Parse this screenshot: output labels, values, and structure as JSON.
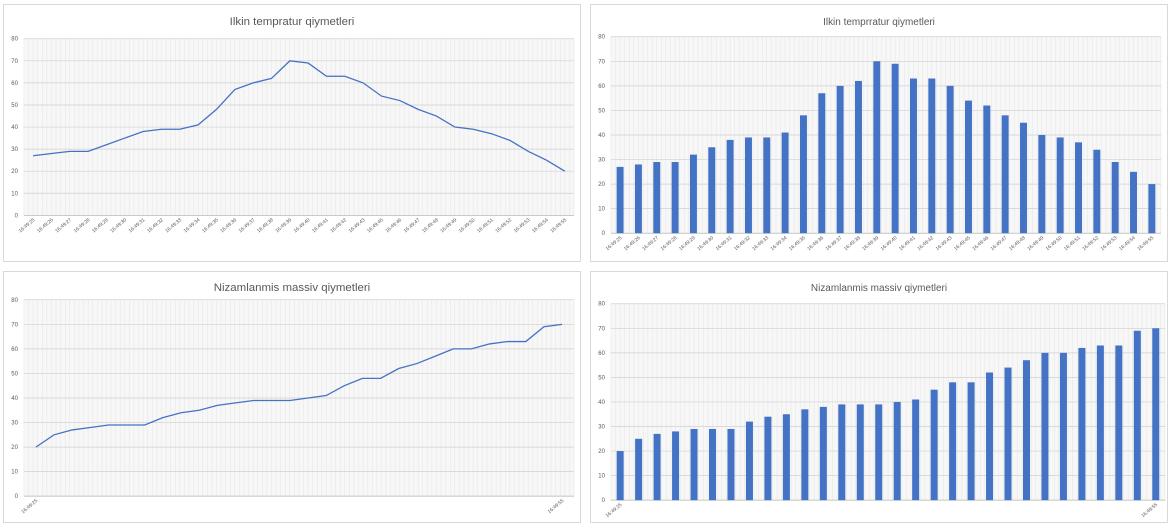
{
  "colors": {
    "series": "#4472c4",
    "grid": "#e4e4e4",
    "plot_bg": "#f7f7f7",
    "axis_text": "#595959"
  },
  "chart_data": [
    {
      "type": "line",
      "title": "Ilkin tempratur qiymetleri",
      "categories": [
        "16:49:25",
        "16:49:26",
        "16:49:27",
        "16:49:28",
        "16:49:29",
        "16:49:30",
        "16:49:31",
        "16:49:32",
        "16:49:33",
        "16:49:34",
        "16:49:35",
        "16:49:36",
        "16:49:37",
        "16:49:38",
        "16:49:39",
        "16:49:40",
        "16:49:41",
        "16:49:42",
        "16:49:43",
        "16:49:45",
        "16:49:46",
        "16:49:47",
        "16:49:48",
        "16:49:49",
        "16:49:50",
        "16:49:51",
        "16:49:52",
        "16:49:53",
        "16:49:54",
        "16:49:55"
      ],
      "values": [
        27,
        28,
        29,
        29,
        32,
        35,
        38,
        39,
        39,
        41,
        48,
        57,
        60,
        62,
        70,
        69,
        63,
        63,
        60,
        54,
        52,
        48,
        45,
        40,
        39,
        37,
        34,
        29,
        25,
        20
      ],
      "ylim": [
        0,
        80
      ],
      "yticks": [
        0,
        10,
        20,
        30,
        40,
        50,
        60,
        70,
        80
      ],
      "grid": true,
      "legend": "none"
    },
    {
      "type": "bar",
      "title": "Ilkin temprratur qiymetleri",
      "categories": [
        "16:49:25",
        "16:49:26",
        "16:49:27",
        "16:49:28",
        "16:49:29",
        "16:49:30",
        "16:49:31",
        "16:49:32",
        "16:49:33",
        "16:49:34",
        "16:49:35",
        "16:49:36",
        "16:49:37",
        "16:49:38",
        "16:49:39",
        "16:49:40",
        "16:49:41",
        "16:49:42",
        "16:49:43",
        "16:49:45",
        "16:49:46",
        "16:49:47",
        "16:49:48",
        "16:49:49",
        "16:49:50",
        "16:49:51",
        "16:49:52",
        "16:49:53",
        "16:49:54",
        "16:49:55"
      ],
      "values": [
        27,
        28,
        29,
        29,
        32,
        35,
        38,
        39,
        39,
        41,
        48,
        57,
        60,
        62,
        70,
        69,
        63,
        63,
        60,
        54,
        52,
        48,
        45,
        40,
        39,
        37,
        34,
        29,
        25,
        20
      ],
      "ylim": [
        0,
        80
      ],
      "yticks": [
        0,
        10,
        20,
        30,
        40,
        50,
        60,
        70,
        80
      ],
      "grid": true,
      "legend": "none"
    },
    {
      "type": "line",
      "title": "Nizamlanmis massiv qiymetleri",
      "categories": [
        "16:49:25",
        "",
        "",
        "",
        "",
        "",
        "",
        "",
        "",
        "",
        "",
        "",
        "",
        "",
        "",
        "",
        "",
        "",
        "",
        "",
        "",
        "",
        "",
        "",
        "",
        "",
        "",
        "",
        "",
        "16:49:55"
      ],
      "values": [
        20,
        25,
        27,
        28,
        29,
        29,
        29,
        32,
        34,
        35,
        37,
        38,
        39,
        39,
        39,
        40,
        41,
        45,
        48,
        48,
        52,
        54,
        57,
        60,
        60,
        62,
        63,
        63,
        69,
        70
      ],
      "ylim": [
        0,
        80
      ],
      "yticks": [
        0,
        10,
        20,
        30,
        40,
        50,
        60,
        70,
        80
      ],
      "grid": true,
      "legend": "none"
    },
    {
      "type": "bar",
      "title": "Nizamlanmis massiv qiymetleri",
      "categories": [
        "16:49:25",
        "",
        "",
        "",
        "",
        "",
        "",
        "",
        "",
        "",
        "",
        "",
        "",
        "",
        "",
        "",
        "",
        "",
        "",
        "",
        "",
        "",
        "",
        "",
        "",
        "",
        "",
        "",
        "",
        "16:49:55"
      ],
      "values": [
        20,
        25,
        27,
        28,
        29,
        29,
        29,
        32,
        34,
        35,
        37,
        38,
        39,
        39,
        39,
        40,
        41,
        45,
        48,
        48,
        52,
        54,
        57,
        60,
        60,
        62,
        63,
        63,
        69,
        70
      ],
      "ylim": [
        0,
        80
      ],
      "yticks": [
        0,
        10,
        20,
        30,
        40,
        50,
        60,
        70,
        80
      ],
      "grid": true,
      "legend": "none"
    }
  ]
}
